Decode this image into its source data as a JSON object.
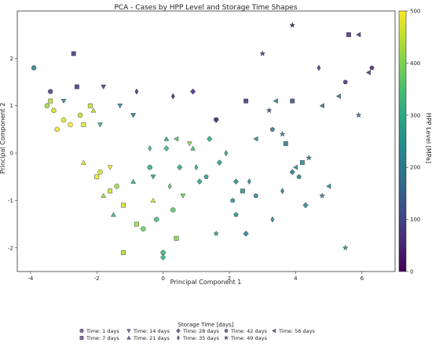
{
  "chart_data": {
    "type": "scatter",
    "title": "PCA - Cases by HPP Level and Storage Time Shapes",
    "xlabel": "Principal Component 1",
    "ylabel": "Principal Component 2",
    "xlim": [
      -4.4,
      7.0
    ],
    "ylim": [
      -2.5,
      3.0
    ],
    "xticks": [
      -4,
      -2,
      0,
      2,
      4,
      6
    ],
    "yticks": [
      -2,
      -1,
      0,
      1,
      2
    ],
    "grid": false,
    "colorbar": {
      "label": "HPP Level [MPa]",
      "ticks": [
        0,
        100,
        200,
        300,
        400,
        500
      ],
      "range": [
        0,
        500
      ],
      "colormap": "viridis"
    },
    "legend": {
      "title": "Storage Time [days]",
      "placement": "bottom-center",
      "entries": [
        {
          "label": "Time: 1 days",
          "marker": "circle"
        },
        {
          "label": "Time: 7 days",
          "marker": "square"
        },
        {
          "label": "Time: 14 days",
          "marker": "triangle-down"
        },
        {
          "label": "Time: 21 days",
          "marker": "triangle-up"
        },
        {
          "label": "Time: 28 days",
          "marker": "diamond"
        },
        {
          "label": "Time: 35 days",
          "marker": "thin-diamond"
        },
        {
          "label": "Time: 42 days",
          "marker": "pentagon"
        },
        {
          "label": "Time: 49 days",
          "marker": "star"
        },
        {
          "label": "Time: 56 days",
          "marker": "triangle-left"
        }
      ]
    },
    "series": [
      {
        "time": 1,
        "marker": "circle",
        "points": [
          {
            "x": -3.9,
            "y": 1.8,
            "hpp": 200
          },
          {
            "x": -3.5,
            "y": 1.0,
            "hpp": 420
          },
          {
            "x": -3.3,
            "y": 0.9,
            "hpp": 460
          },
          {
            "x": -3.0,
            "y": 0.7,
            "hpp": 480
          },
          {
            "x": -2.8,
            "y": 0.6,
            "hpp": 500
          },
          {
            "x": -3.2,
            "y": 0.5,
            "hpp": 490
          },
          {
            "x": -2.5,
            "y": 0.8,
            "hpp": 450
          },
          {
            "x": -1.9,
            "y": -0.4,
            "hpp": 470
          },
          {
            "x": -1.4,
            "y": -0.7,
            "hpp": 420
          },
          {
            "x": -0.6,
            "y": -1.6,
            "hpp": 380
          },
          {
            "x": -0.2,
            "y": -1.4,
            "hpp": 340
          },
          {
            "x": 0.0,
            "y": -2.1,
            "hpp": 330
          },
          {
            "x": 0.3,
            "y": -1.2,
            "hpp": 360
          },
          {
            "x": -3.4,
            "y": 1.3,
            "hpp": 90
          },
          {
            "x": -0.4,
            "y": -0.3,
            "hpp": 310
          }
        ]
      },
      {
        "time": 7,
        "marker": "square",
        "points": [
          {
            "x": -2.7,
            "y": 2.1,
            "hpp": 60
          },
          {
            "x": -3.4,
            "y": 1.1,
            "hpp": 450
          },
          {
            "x": -2.4,
            "y": 0.6,
            "hpp": 480
          },
          {
            "x": -2.0,
            "y": -0.5,
            "hpp": 490
          },
          {
            "x": -1.6,
            "y": -0.8,
            "hpp": 460
          },
          {
            "x": -1.2,
            "y": -1.1,
            "hpp": 470
          },
          {
            "x": -0.8,
            "y": -1.5,
            "hpp": 420
          },
          {
            "x": -1.2,
            "y": -2.1,
            "hpp": 440
          },
          {
            "x": 0.4,
            "y": -1.8,
            "hpp": 400
          },
          {
            "x": -2.2,
            "y": 1.0,
            "hpp": 460
          },
          {
            "x": 2.4,
            "y": -0.8,
            "hpp": 250
          },
          {
            "x": 3.7,
            "y": 0.2,
            "hpp": 200
          },
          {
            "x": 4.2,
            "y": -0.2,
            "hpp": 230
          },
          {
            "x": 5.6,
            "y": 2.5,
            "hpp": 60
          },
          {
            "x": 3.9,
            "y": 1.1,
            "hpp": 120
          },
          {
            "x": 2.5,
            "y": 1.1,
            "hpp": 60
          },
          {
            "x": -2.6,
            "y": 1.4,
            "hpp": 70
          }
        ]
      },
      {
        "time": 14,
        "marker": "triangle-down",
        "points": [
          {
            "x": -1.8,
            "y": 1.4,
            "hpp": 80
          },
          {
            "x": -1.3,
            "y": 1.0,
            "hpp": 250
          },
          {
            "x": -0.9,
            "y": 0.8,
            "hpp": 190
          },
          {
            "x": -1.9,
            "y": 0.6,
            "hpp": 300
          },
          {
            "x": -0.3,
            "y": -0.5,
            "hpp": 280
          },
          {
            "x": 0.6,
            "y": -0.9,
            "hpp": 380
          },
          {
            "x": 0.8,
            "y": 0.2,
            "hpp": 400
          },
          {
            "x": -1.6,
            "y": -0.3,
            "hpp": 490
          },
          {
            "x": -3.0,
            "y": 1.1,
            "hpp": 240
          },
          {
            "x": 1.6,
            "y": 0.7,
            "hpp": 60
          }
        ]
      },
      {
        "time": 21,
        "marker": "triangle-up",
        "points": [
          {
            "x": -2.4,
            "y": -0.2,
            "hpp": 480
          },
          {
            "x": -1.8,
            "y": -0.9,
            "hpp": 420
          },
          {
            "x": -1.5,
            "y": -1.3,
            "hpp": 330
          },
          {
            "x": -0.9,
            "y": -0.6,
            "hpp": 310
          },
          {
            "x": -0.3,
            "y": -1.0,
            "hpp": 470
          },
          {
            "x": 0.1,
            "y": 0.3,
            "hpp": 290
          },
          {
            "x": -2.1,
            "y": 0.9,
            "hpp": 450
          },
          {
            "x": 0.9,
            "y": 0.1,
            "hpp": 350
          }
        ]
      },
      {
        "time": 28,
        "marker": "diamond",
        "points": [
          {
            "x": 0.1,
            "y": 0.1,
            "hpp": 330
          },
          {
            "x": 0.5,
            "y": -0.3,
            "hpp": 300
          },
          {
            "x": 1.1,
            "y": -0.6,
            "hpp": 280
          },
          {
            "x": 1.7,
            "y": -0.2,
            "hpp": 260
          },
          {
            "x": 2.2,
            "y": -0.6,
            "hpp": 240
          },
          {
            "x": 1.4,
            "y": 0.3,
            "hpp": 290
          },
          {
            "x": 0.0,
            "y": -2.2,
            "hpp": 310
          },
          {
            "x": 2.5,
            "y": -1.7,
            "hpp": 200
          },
          {
            "x": 3.9,
            "y": -0.4,
            "hpp": 180
          },
          {
            "x": 4.3,
            "y": -1.1,
            "hpp": 220
          },
          {
            "x": 0.9,
            "y": 1.3,
            "hpp": 60
          },
          {
            "x": 1.6,
            "y": 0.7,
            "hpp": 80
          }
        ]
      },
      {
        "time": 35,
        "marker": "thin-diamond",
        "points": [
          {
            "x": -0.4,
            "y": 0.1,
            "hpp": 330
          },
          {
            "x": 0.2,
            "y": -0.7,
            "hpp": 360
          },
          {
            "x": 1.0,
            "y": -0.3,
            "hpp": 300
          },
          {
            "x": 1.9,
            "y": 0.0,
            "hpp": 270
          },
          {
            "x": 2.6,
            "y": -0.6,
            "hpp": 230
          },
          {
            "x": 3.3,
            "y": -1.4,
            "hpp": 210
          },
          {
            "x": 3.6,
            "y": -0.8,
            "hpp": 190
          },
          {
            "x": 4.7,
            "y": 1.8,
            "hpp": 70
          },
          {
            "x": -0.8,
            "y": 1.3,
            "hpp": 50
          },
          {
            "x": 0.3,
            "y": 1.2,
            "hpp": 40
          }
        ]
      },
      {
        "time": 42,
        "marker": "pentagon",
        "points": [
          {
            "x": 1.3,
            "y": -0.5,
            "hpp": 280
          },
          {
            "x": 2.1,
            "y": -1.0,
            "hpp": 240
          },
          {
            "x": 2.8,
            "y": -0.9,
            "hpp": 220
          },
          {
            "x": 3.3,
            "y": 0.5,
            "hpp": 190
          },
          {
            "x": 4.1,
            "y": -0.5,
            "hpp": 210
          },
          {
            "x": 2.2,
            "y": -1.3,
            "hpp": 250
          },
          {
            "x": 5.5,
            "y": 1.5,
            "hpp": 60
          },
          {
            "x": 6.3,
            "y": 1.8,
            "hpp": 50
          }
        ]
      },
      {
        "time": 49,
        "marker": "star",
        "points": [
          {
            "x": 3.9,
            "y": 2.7,
            "hpp": 40
          },
          {
            "x": 3.0,
            "y": 2.1,
            "hpp": 70
          },
          {
            "x": 3.6,
            "y": 0.4,
            "hpp": 190
          },
          {
            "x": 4.4,
            "y": -0.1,
            "hpp": 200
          },
          {
            "x": 5.5,
            "y": -2.0,
            "hpp": 240
          },
          {
            "x": 4.8,
            "y": -0.9,
            "hpp": 220
          },
          {
            "x": 5.9,
            "y": 0.8,
            "hpp": 150
          },
          {
            "x": 1.6,
            "y": -1.7,
            "hpp": 260
          },
          {
            "x": 3.2,
            "y": 0.9,
            "hpp": 120
          }
        ]
      },
      {
        "time": 56,
        "marker": "triangle-left",
        "points": [
          {
            "x": 5.9,
            "y": 2.5,
            "hpp": 60
          },
          {
            "x": 6.2,
            "y": 1.7,
            "hpp": 80
          },
          {
            "x": 4.8,
            "y": 1.0,
            "hpp": 180
          },
          {
            "x": 5.3,
            "y": 1.2,
            "hpp": 200
          },
          {
            "x": 3.4,
            "y": 1.1,
            "hpp": 220
          },
          {
            "x": 4.0,
            "y": -0.3,
            "hpp": 250
          },
          {
            "x": 5.0,
            "y": -0.7,
            "hpp": 240
          },
          {
            "x": 0.4,
            "y": 0.3,
            "hpp": 350
          },
          {
            "x": 2.8,
            "y": 0.3,
            "hpp": 230
          }
        ]
      }
    ]
  }
}
